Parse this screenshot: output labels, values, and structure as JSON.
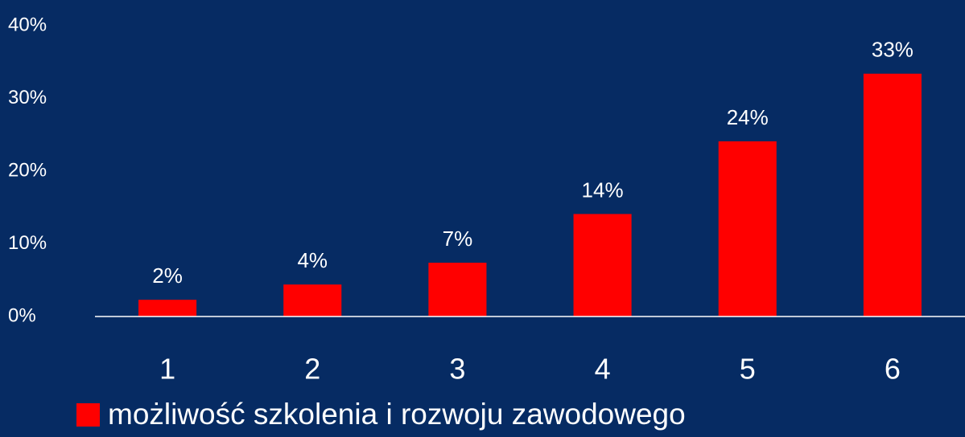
{
  "chart_data": {
    "type": "bar",
    "categories": [
      "1",
      "2",
      "3",
      "4",
      "5",
      "6"
    ],
    "series": [
      {
        "name": "możliwość szkolenia i rozwoju zawodowego",
        "color": "#ff0000",
        "values": [
          2.3,
          4.4,
          7.4,
          14.1,
          24.1,
          33.4
        ],
        "value_labels": [
          "2%",
          "4%",
          "7%",
          "14%",
          "24%",
          "33%"
        ]
      }
    ],
    "ylim": [
      0,
      40
    ],
    "yticks": [
      {
        "value": 0,
        "label": "0%"
      },
      {
        "value": 10,
        "label": "10%"
      },
      {
        "value": 20,
        "label": "20%"
      },
      {
        "value": 30,
        "label": "30%"
      },
      {
        "value": 40,
        "label": "40%"
      }
    ],
    "grid": false,
    "legend": "bottom"
  }
}
